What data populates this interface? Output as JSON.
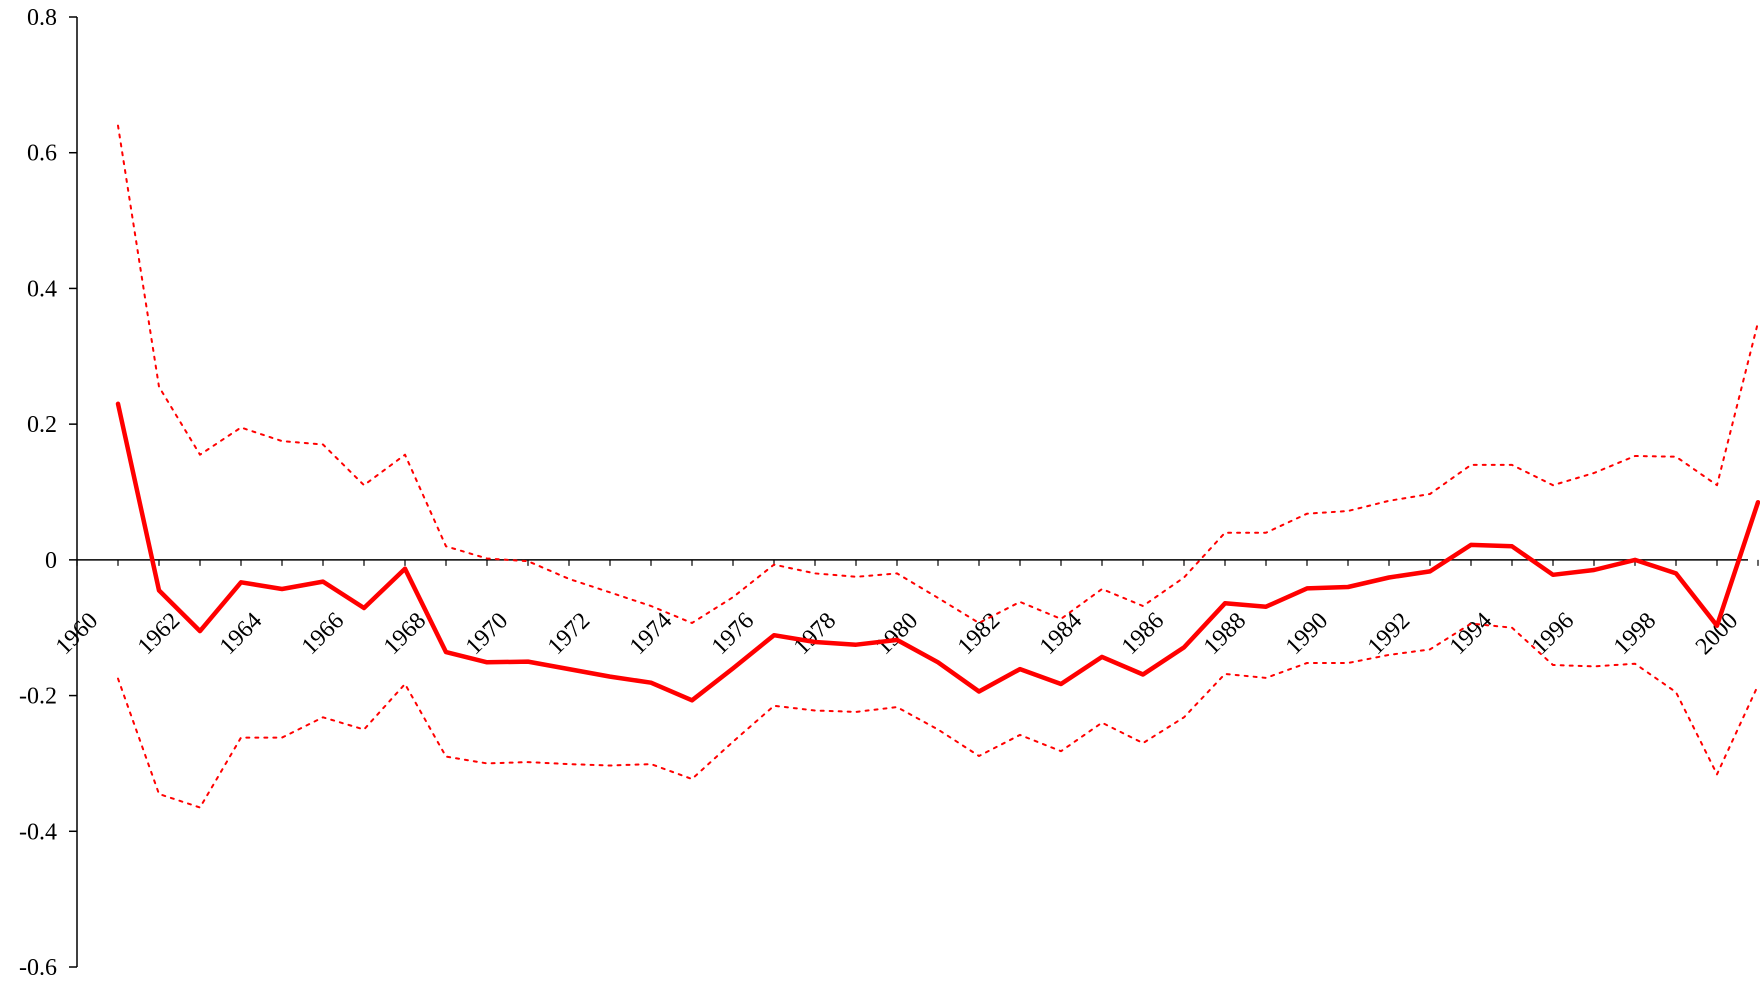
{
  "chart_data": {
    "type": "line",
    "x": [
      1961,
      1962,
      1963,
      1964,
      1965,
      1966,
      1967,
      1968,
      1969,
      1970,
      1971,
      1972,
      1973,
      1974,
      1975,
      1976,
      1977,
      1978,
      1979,
      1980,
      1981,
      1982,
      1983,
      1984,
      1985,
      1986,
      1987,
      1988,
      1989,
      1990,
      1991,
      1992,
      1993,
      1994,
      1995,
      1996,
      1997,
      1998,
      1999,
      2000,
      2001
    ],
    "series": [
      {
        "style": "solid",
        "values": [
          0.23,
          -0.045,
          -0.105,
          -0.033,
          -0.043,
          -0.032,
          -0.071,
          -0.013,
          -0.136,
          -0.151,
          -0.15,
          -0.161,
          -0.172,
          -0.181,
          -0.207,
          -0.16,
          -0.111,
          -0.121,
          -0.125,
          -0.118,
          -0.151,
          -0.194,
          -0.161,
          -0.183,
          -0.143,
          -0.169,
          -0.129,
          -0.064,
          -0.069,
          -0.042,
          -0.04,
          -0.026,
          -0.017,
          0.022,
          0.02,
          -0.022,
          -0.015,
          0.0,
          -0.02,
          -0.097,
          0.085
        ]
      },
      {
        "style": "dotted",
        "values": [
          0.64,
          0.255,
          0.155,
          0.195,
          0.175,
          0.17,
          0.11,
          0.155,
          0.02,
          0.002,
          -0.002,
          -0.028,
          -0.048,
          -0.068,
          -0.093,
          -0.055,
          -0.007,
          -0.02,
          -0.025,
          -0.02,
          -0.056,
          -0.093,
          -0.062,
          -0.087,
          -0.043,
          -0.068,
          -0.026,
          0.04,
          0.04,
          0.068,
          0.072,
          0.087,
          0.097,
          0.14,
          0.14,
          0.11,
          0.128,
          0.153,
          0.152,
          0.11,
          0.35
        ]
      },
      {
        "style": "dotted",
        "values": [
          -0.175,
          -0.345,
          -0.365,
          -0.262,
          -0.262,
          -0.232,
          -0.25,
          -0.183,
          -0.29,
          -0.3,
          -0.298,
          -0.301,
          -0.303,
          -0.301,
          -0.323,
          -0.268,
          -0.215,
          -0.222,
          -0.224,
          -0.217,
          -0.25,
          -0.289,
          -0.258,
          -0.282,
          -0.24,
          -0.27,
          -0.232,
          -0.168,
          -0.174,
          -0.152,
          -0.152,
          -0.14,
          -0.132,
          -0.094,
          -0.1,
          -0.155,
          -0.157,
          -0.153,
          -0.195,
          -0.316,
          -0.185
        ]
      }
    ],
    "ylim": [
      -0.6,
      0.8
    ],
    "xlim": [
      1960,
      2001
    ],
    "y_ticks": [
      "-0.6",
      "-0.4",
      "-0.2",
      "0",
      "0.2",
      "0.4",
      "0.6",
      "0.8"
    ],
    "x_ticks": [
      "1960",
      "1962",
      "1964",
      "1966",
      "1968",
      "1970",
      "1972",
      "1974",
      "1976",
      "1978",
      "1980",
      "1982",
      "1984",
      "1986",
      "1988",
      "1990",
      "1992",
      "1994",
      "1996",
      "1998",
      "2000"
    ],
    "line_color": "#ff0000",
    "axis_color": "#000000",
    "grid": false
  }
}
